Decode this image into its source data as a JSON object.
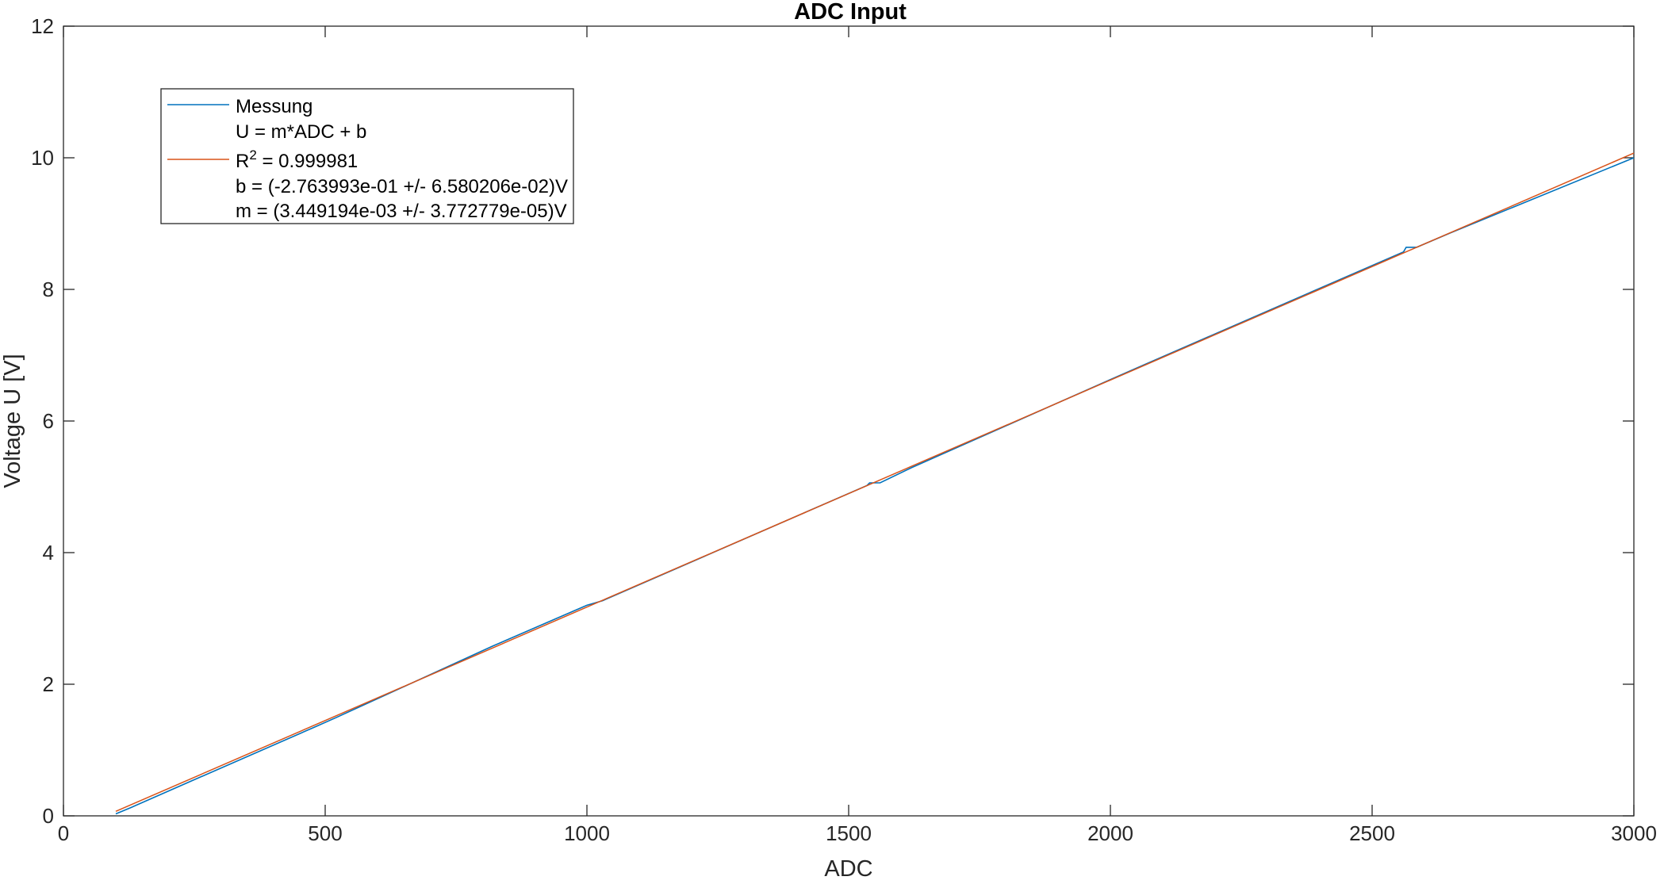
{
  "chart_data": {
    "type": "line",
    "title": "ADC Input",
    "xlabel": "ADC",
    "ylabel": "Voltage U [V]",
    "xlim": [
      0,
      3000
    ],
    "ylim": [
      0,
      12
    ],
    "xticks": [
      0,
      500,
      1000,
      1500,
      2000,
      2500,
      3000
    ],
    "yticks": [
      0,
      2,
      4,
      6,
      8,
      10,
      12
    ],
    "grid": false,
    "legend_position": "top-left",
    "series": [
      {
        "name": "Messung",
        "color": "#0072BD",
        "x": [
          100,
          130,
          250,
          480,
          520,
          820,
          1000,
          1030,
          1535,
          1540,
          1560,
          1620,
          2000,
          2060,
          2560,
          2565,
          2585,
          2650,
          3000
        ],
        "y": [
          0.03,
          0.13,
          0.55,
          1.35,
          1.49,
          2.58,
          3.2,
          3.27,
          5.02,
          5.06,
          5.06,
          5.29,
          6.63,
          6.84,
          8.57,
          8.64,
          8.64,
          8.86,
          10.0
        ]
      },
      {
        "name": "R^2 = 0.999981",
        "color": "#D95319",
        "fit": {
          "m": 0.003449194,
          "b": -0.2763993
        },
        "x": [
          100,
          3000
        ],
        "y": [
          0.069,
          10.071
        ]
      }
    ],
    "legend": {
      "entries": [
        {
          "text": "Messung",
          "color": "#0072BD",
          "has_line": true
        },
        {
          "text": "U = m*ADC + b",
          "has_line": false
        },
        {
          "text_base": "R",
          "text_sup": "2",
          "text_rest": " = 0.999981",
          "color": "#D95319",
          "has_line": true
        },
        {
          "text": "b = (-2.763993e-01 +/- 6.580206e-02)V",
          "has_line": false
        },
        {
          "text": "m = (3.449194e-03 +/- 3.772779e-05)V",
          "has_line": false
        }
      ]
    }
  }
}
